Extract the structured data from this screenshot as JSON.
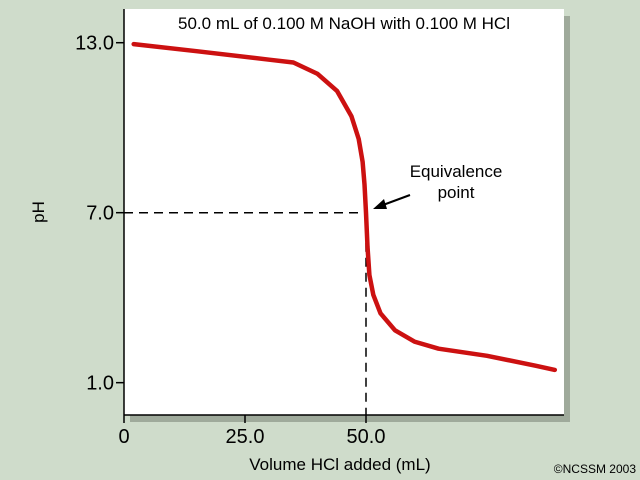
{
  "chart_data": {
    "type": "line",
    "title": "50.0 mL of 0.100 M NaOH with 0.100 M HCl",
    "xlabel": "Volume HCl added (mL)",
    "ylabel": "pH",
    "xlim": [
      0,
      90
    ],
    "ylim": [
      0,
      13.8
    ],
    "x_ticks": [
      {
        "value": 0,
        "label": "0"
      },
      {
        "value": 25,
        "label": "25.0"
      },
      {
        "value": 50,
        "label": "50.0"
      }
    ],
    "y_ticks": [
      {
        "value": 13,
        "label": "13.0"
      },
      {
        "value": 7,
        "label": "7.0"
      },
      {
        "value": 1,
        "label": "1.0"
      }
    ],
    "grid": false,
    "legend": "none",
    "series": [
      {
        "color": "#cc1111",
        "x": [
          2,
          15,
          30,
          35,
          40,
          44,
          47,
          48.5,
          49.3,
          49.7,
          50,
          50.3,
          50.7,
          51.5,
          53,
          56,
          60,
          65,
          75,
          85,
          89
        ],
        "y": [
          12.95,
          12.7,
          12.4,
          12.3,
          11.9,
          11.3,
          10.4,
          9.6,
          8.8,
          8.0,
          7.0,
          5.8,
          4.8,
          4.1,
          3.45,
          2.85,
          2.45,
          2.2,
          1.95,
          1.6,
          1.45
        ]
      }
    ],
    "annotations": [
      {
        "text_lines": [
          "Equivalence",
          "point"
        ],
        "x": 50,
        "y": 7.0
      }
    ],
    "reference_lines": {
      "x": 50,
      "y": 7.0,
      "style": "dashed"
    }
  },
  "credit": "©NCSSM 2003",
  "colors": {
    "background": "#cfdccb",
    "plot_background": "#ffffff",
    "curve": "#cc1111",
    "shadow": "#8a9486"
  }
}
